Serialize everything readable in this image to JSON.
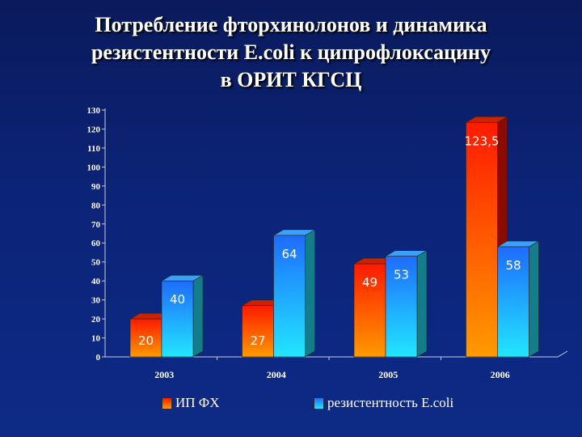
{
  "slide": {
    "title_lines": [
      "Потребление фторхинолонов и динамика",
      "резистентности E.coli к ципрофлоксацину",
      "в ОРИТ КГСЦ"
    ]
  },
  "chart_data": {
    "type": "bar",
    "categories": [
      "2003",
      "2004",
      "2005",
      "2006"
    ],
    "series": [
      {
        "name": "ИП ФХ",
        "values": [
          20,
          27,
          49,
          123.5
        ],
        "labels": [
          "20",
          "27",
          "49",
          "123,5"
        ],
        "color": "#ff3300"
      },
      {
        "name": "резистентность E.coli",
        "values": [
          40,
          64,
          53,
          58
        ],
        "labels": [
          "40",
          "64",
          "53",
          "58"
        ],
        "color": "#1e90ff"
      }
    ],
    "ylim": [
      0,
      130
    ],
    "yticks": [
      0,
      10,
      20,
      30,
      40,
      50,
      60,
      70,
      80,
      90,
      100,
      110,
      120,
      130
    ],
    "legend_position": "bottom",
    "grid": false,
    "style": "3d-bars"
  },
  "colors": {
    "background": "#0c2478",
    "series1_top": "#ff1a00",
    "series1_bottom": "#ff9a00",
    "series2_top": "#1e6cff",
    "series2_bottom": "#22e6ff"
  }
}
